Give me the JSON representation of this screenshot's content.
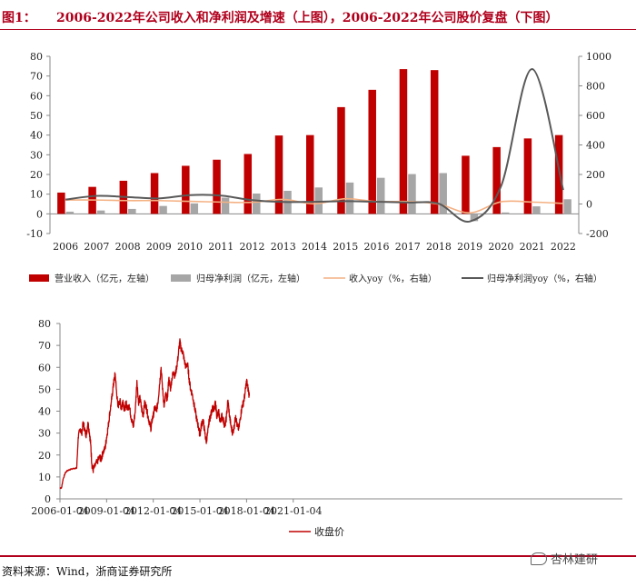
{
  "header": {
    "label": "图1：",
    "title": "2006-2022年公司收入和净利润及增速（上图），2006-2022年公司股价复盘（下图）"
  },
  "chart_data": [
    {
      "type": "bar",
      "title": "2006-2022年公司收入和净利润及增速",
      "categories": [
        "2006",
        "2007",
        "2008",
        "2009",
        "2010",
        "2011",
        "2012",
        "2013",
        "2014",
        "2015",
        "2016",
        "2017",
        "2018",
        "2019",
        "2020",
        "2021",
        "2022"
      ],
      "series": [
        {
          "name": "营业收入（亿元，左轴）",
          "kind": "bar",
          "axis": "left",
          "color": "#c00000",
          "values": [
            10.8,
            13.7,
            16.8,
            20.7,
            24.4,
            27.5,
            30.4,
            39.8,
            40,
            54.2,
            63,
            73.5,
            73,
            29.5,
            33.9,
            38.3,
            40
          ]
        },
        {
          "name": "归母净利润（亿元，左轴）",
          "kind": "bar",
          "axis": "left",
          "color": "#a6a6a6",
          "values": [
            1.1,
            1.7,
            2.5,
            4.0,
            5.3,
            8.2,
            10.3,
            11.7,
            13.4,
            15.9,
            18.3,
            20.2,
            20.7,
            -3.7,
            0.7,
            3.8,
            7.4
          ]
        },
        {
          "name": "收入yoy（%，右轴）",
          "kind": "line",
          "axis": "right",
          "color": "#f4b183",
          "values": [
            27,
            27,
            23,
            23,
            18,
            13,
            11,
            31,
            1,
            36,
            16,
            17,
            -1,
            -60,
            15,
            13,
            4
          ]
        },
        {
          "name": "归母净利润yoy（%，右轴）",
          "kind": "line",
          "axis": "right",
          "color": "#595959",
          "values": [
            30,
            55,
            47,
            38,
            60,
            57,
            26,
            14,
            15,
            19,
            15,
            10,
            2,
            -118,
            120,
            914,
            95
          ]
        }
      ],
      "ylim_left": [
        -10,
        80
      ],
      "yticks_left": [
        "-10",
        "0",
        "10",
        "20",
        "30",
        "40",
        "50",
        "60",
        "70",
        "80"
      ],
      "ylim_right": [
        -200,
        1000
      ],
      "yticks_right": [
        "-200",
        "0",
        "200",
        "400",
        "600",
        "800",
        "1000"
      ],
      "legend": {
        "position": "bottom",
        "items": [
          "营业收入（亿元，左轴）",
          "归母净利润（亿元，左轴）",
          "收入yoy（%，右轴）",
          "归母净利润yoy（%，右轴）"
        ]
      }
    },
    {
      "type": "line",
      "title": "2006-2022年公司股价复盘",
      "series": [
        {
          "name": "收盘价",
          "color": "#c00000",
          "points": [
            [
              0,
              5
            ],
            [
              0.2,
              5
            ],
            [
              0.4,
              9
            ],
            [
              0.7,
              12
            ],
            [
              1.0,
              13
            ],
            [
              1.4,
              13.5
            ],
            [
              1.9,
              14
            ],
            [
              2.15,
              14
            ],
            [
              2.35,
              28
            ],
            [
              2.6,
              32
            ],
            [
              2.8,
              30
            ],
            [
              3.0,
              35
            ],
            [
              3.2,
              31
            ],
            [
              3.4,
              29
            ],
            [
              3.6,
              35
            ],
            [
              3.8,
              30
            ],
            [
              3.95,
              25
            ],
            [
              4.1,
              16
            ],
            [
              4.25,
              13
            ],
            [
              4.5,
              15
            ],
            [
              4.8,
              17
            ],
            [
              5.1,
              19
            ],
            [
              5.3,
              18
            ],
            [
              5.5,
              21
            ],
            [
              5.8,
              23
            ],
            [
              6.0,
              28
            ],
            [
              6.2,
              33
            ],
            [
              6.4,
              39
            ],
            [
              6.6,
              44
            ],
            [
              6.8,
              50
            ],
            [
              6.95,
              54
            ],
            [
              7.1,
              57
            ],
            [
              7.25,
              50
            ],
            [
              7.45,
              42
            ],
            [
              7.7,
              45
            ],
            [
              7.9,
              41
            ],
            [
              8.1,
              45
            ],
            [
              8.3,
              40
            ],
            [
              8.5,
              44
            ],
            [
              8.7,
              41
            ],
            [
              8.9,
              43
            ],
            [
              9.1,
              38
            ],
            [
              9.3,
              35
            ],
            [
              9.45,
              33
            ],
            [
              9.7,
              41
            ],
            [
              9.9,
              54
            ],
            [
              10.1,
              44
            ],
            [
              10.3,
              46
            ],
            [
              10.5,
              41
            ],
            [
              10.7,
              38
            ],
            [
              10.9,
              44
            ],
            [
              11.1,
              42
            ],
            [
              11.3,
              38
            ],
            [
              11.5,
              35
            ],
            [
              11.7,
              32
            ],
            [
              11.85,
              36
            ],
            [
              12.0,
              38
            ],
            [
              12.2,
              42
            ],
            [
              12.4,
              40
            ],
            [
              12.6,
              44
            ],
            [
              12.8,
              52
            ],
            [
              13.0,
              60
            ],
            [
              13.2,
              50
            ],
            [
              13.4,
              42
            ],
            [
              13.6,
              48
            ],
            [
              13.8,
              45
            ],
            [
              14.0,
              55
            ],
            [
              14.2,
              50
            ],
            [
              14.4,
              55
            ],
            [
              14.6,
              58
            ],
            [
              14.8,
              56
            ],
            [
              15.0,
              60
            ],
            [
              15.2,
              65
            ],
            [
              15.4,
              72
            ],
            [
              15.6,
              68
            ],
            [
              15.8,
              67
            ],
            [
              16.0,
              63
            ],
            [
              16.2,
              60
            ],
            [
              16.4,
              62
            ],
            [
              16.6,
              55
            ],
            [
              16.8,
              50
            ],
            [
              17.0,
              48
            ],
            [
              17.2,
              44
            ],
            [
              17.4,
              40
            ],
            [
              17.6,
              36
            ],
            [
              17.8,
              33
            ],
            [
              18.0,
              29
            ],
            [
              18.2,
              34
            ],
            [
              18.4,
              36
            ],
            [
              18.6,
              31
            ],
            [
              18.8,
              26
            ],
            [
              19.0,
              30
            ],
            [
              19.2,
              36
            ],
            [
              19.4,
              38
            ],
            [
              19.6,
              42
            ],
            [
              19.8,
              40
            ],
            [
              20.0,
              44
            ],
            [
              20.2,
              37
            ],
            [
              20.4,
              40
            ],
            [
              20.6,
              35
            ],
            [
              20.8,
              38
            ],
            [
              21.0,
              36
            ],
            [
              21.2,
              33
            ],
            [
              21.4,
              37
            ],
            [
              21.6,
              45
            ],
            [
              21.8,
              38
            ],
            [
              22.0,
              33
            ],
            [
              22.2,
              30
            ],
            [
              22.4,
              33
            ],
            [
              22.6,
              38
            ],
            [
              22.8,
              33
            ],
            [
              23.0,
              32
            ],
            [
              23.2,
              37
            ],
            [
              23.4,
              42
            ],
            [
              23.6,
              44
            ],
            [
              23.8,
              48
            ],
            [
              24.0,
              54
            ],
            [
              24.2,
              50
            ],
            [
              24.35,
              47
            ]
          ]
        }
      ],
      "x_origin": "2006-01-04",
      "x_unit": "semester index (0.5-year steps from 2006-01-04)",
      "xtick_labels": [
        "2006-01-04",
        "2009-01-04",
        "2012-01-04",
        "2015-01-04",
        "2018-01-04",
        "2021-01-04"
      ],
      "xtick_values": [
        0,
        6,
        12,
        18,
        24,
        30
      ],
      "ylim": [
        0,
        80
      ],
      "yticks": [
        "0",
        "10",
        "20",
        "30",
        "40",
        "50",
        "60",
        "70",
        "80"
      ],
      "legend": {
        "position": "bottom",
        "items": [
          "收盘价"
        ]
      }
    }
  ],
  "footer": {
    "source": "资料来源：Wind，浙商证券研究所",
    "watermark": "杏林建研"
  }
}
